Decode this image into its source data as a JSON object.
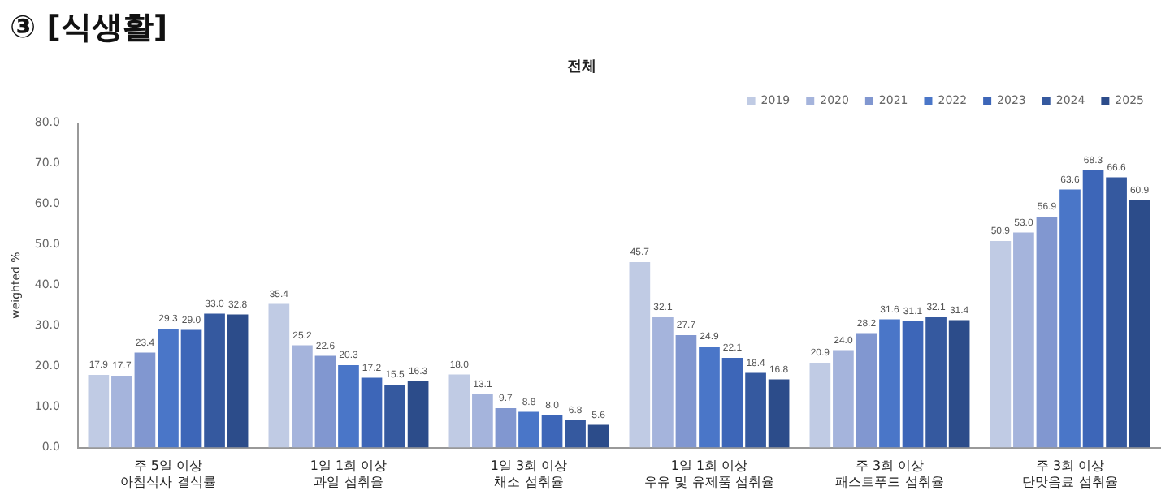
{
  "chart_data": {
    "type": "bar",
    "title": "③ [식생활]",
    "subtitle": "전체",
    "ylabel": "weighted %",
    "categories": [
      "주 5일 이상\n아침식사 결식률",
      "1일 1회 이상\n과일 섭취율",
      "1일 3회 이상\n채소 섭취율",
      "1일 1회 이상\n우유 및 유제품 섭취율",
      "주 3회 이상\n패스트푸드 섭취율",
      "주 3회 이상\n단맛음료 섭취율"
    ],
    "series": [
      {
        "name": "2019",
        "color": "#c0cbe4",
        "values": [
          17.9,
          35.4,
          18.0,
          45.7,
          20.9,
          50.9
        ],
        "value_labels": [
          "17.9",
          "35.4",
          "18.0",
          "45.7",
          "20.9",
          "50.9"
        ]
      },
      {
        "name": "2020",
        "color": "#a5b4dc",
        "values": [
          17.7,
          25.2,
          13.1,
          32.1,
          24.0,
          53.0
        ],
        "value_labels": [
          "17.7",
          "25.2",
          "13.1",
          "32.1",
          "24.0",
          "53.0"
        ]
      },
      {
        "name": "2021",
        "color": "#8197d0",
        "values": [
          23.4,
          22.6,
          9.7,
          27.7,
          28.2,
          56.9
        ],
        "value_labels": [
          "23.4",
          "22.6",
          "9.7",
          "27.7",
          "28.2",
          "56.9"
        ]
      },
      {
        "name": "2022",
        "color": "#4a76c8",
        "values": [
          29.3,
          20.3,
          8.8,
          24.9,
          31.6,
          63.6
        ],
        "value_labels": [
          "29.3",
          "20.3",
          "8.8",
          "24.9",
          "31.6",
          "63.6"
        ]
      },
      {
        "name": "2023",
        "color": "#3d66b8",
        "values": [
          29.0,
          17.2,
          8.0,
          22.1,
          31.1,
          68.3
        ],
        "value_labels": [
          "29.0",
          "17.2",
          "8.0",
          "22.1",
          "31.1",
          "68.3"
        ]
      },
      {
        "name": "2024",
        "color": "#35599f",
        "values": [
          33.0,
          15.5,
          6.8,
          18.4,
          32.1,
          66.6
        ],
        "value_labels": [
          "33.0",
          "15.5",
          "6.8",
          "18.4",
          "32.1",
          "66.6"
        ]
      },
      {
        "name": "2025",
        "color": "#2c4c8a",
        "values": [
          32.8,
          16.3,
          5.6,
          16.8,
          31.4,
          60.9
        ],
        "value_labels": [
          "32.8",
          "16.3",
          "5.6",
          "16.8",
          "31.4",
          "60.9"
        ]
      }
    ],
    "ylim": [
      0,
      80
    ],
    "yticks": [
      {
        "value": 0,
        "label": "0.0"
      },
      {
        "value": 10,
        "label": "10.0"
      },
      {
        "value": 20,
        "label": "20.0"
      },
      {
        "value": 30,
        "label": "30.0"
      },
      {
        "value": 40,
        "label": "40.0"
      },
      {
        "value": 50,
        "label": "50.0"
      },
      {
        "value": 60,
        "label": "60.0"
      },
      {
        "value": 70,
        "label": "70.0"
      },
      {
        "value": 80,
        "label": "80.0"
      }
    ],
    "grid": false,
    "legend": "top right",
    "marker": "square"
  }
}
